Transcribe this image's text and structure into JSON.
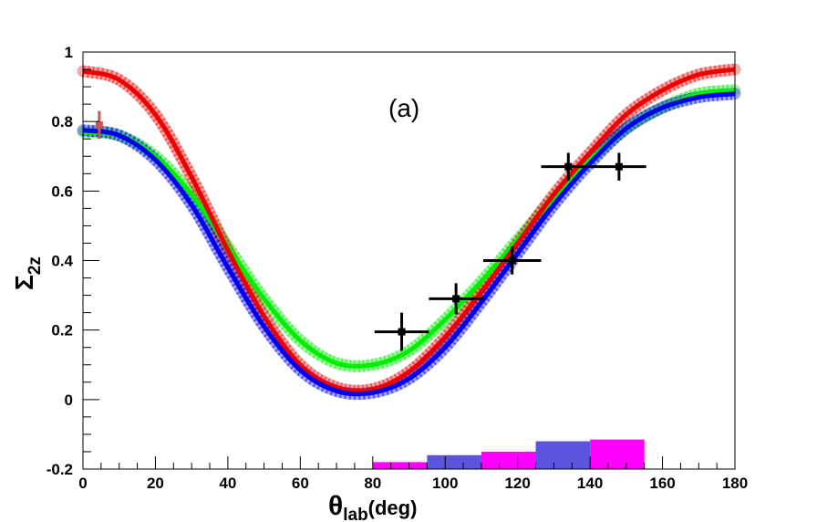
{
  "chart_data": {
    "type": "line",
    "panel_label": "(a)",
    "xlabel": {
      "main": "θ",
      "sub": "lab",
      "unit": "(deg)"
    },
    "ylabel": {
      "main": "Σ",
      "sub": "2z"
    },
    "xlim": [
      0,
      180
    ],
    "ylim": [
      -0.2,
      1.0
    ],
    "x_ticks": [
      0,
      20,
      40,
      60,
      80,
      100,
      120,
      140,
      160,
      180
    ],
    "y_ticks": [
      -0.2,
      0,
      0.2,
      0.4,
      0.6,
      0.8,
      1
    ],
    "x_tick_labels": [
      "0",
      "20",
      "40",
      "60",
      "80",
      "100",
      "120",
      "140",
      "160",
      "180"
    ],
    "y_tick_labels": [
      "-0.2",
      "0",
      "0.2",
      "0.4",
      "0.6",
      "0.8",
      "1"
    ],
    "series": [
      {
        "name": "green",
        "color": "#00ee00",
        "x": [
          0,
          10,
          20,
          30,
          40,
          50,
          60,
          70,
          80,
          90,
          100,
          110,
          120,
          130,
          140,
          150,
          160,
          170,
          180
        ],
        "values": [
          0.77,
          0.76,
          0.7,
          0.59,
          0.44,
          0.29,
          0.17,
          0.105,
          0.1,
          0.14,
          0.23,
          0.34,
          0.46,
          0.58,
          0.69,
          0.78,
          0.84,
          0.88,
          0.89
        ]
      },
      {
        "name": "red",
        "color": "#ee0000",
        "x": [
          0,
          10,
          20,
          30,
          40,
          50,
          60,
          70,
          80,
          90,
          100,
          110,
          120,
          130,
          140,
          150,
          160,
          170,
          180
        ],
        "values": [
          0.945,
          0.92,
          0.82,
          0.64,
          0.43,
          0.24,
          0.1,
          0.035,
          0.03,
          0.08,
          0.18,
          0.31,
          0.45,
          0.59,
          0.71,
          0.82,
          0.89,
          0.935,
          0.95
        ]
      },
      {
        "name": "blue",
        "color": "#0000ee",
        "x": [
          0,
          10,
          20,
          30,
          40,
          50,
          60,
          70,
          80,
          90,
          100,
          110,
          120,
          130,
          140,
          150,
          160,
          170,
          180
        ],
        "values": [
          0.775,
          0.76,
          0.69,
          0.56,
          0.38,
          0.21,
          0.085,
          0.025,
          0.02,
          0.06,
          0.15,
          0.28,
          0.42,
          0.56,
          0.68,
          0.78,
          0.84,
          0.87,
          0.88
        ]
      }
    ],
    "data_points": [
      {
        "x": 88,
        "y": 0.195,
        "xerr": 7.5,
        "yerr": 0.055,
        "color": "#000000"
      },
      {
        "x": 103,
        "y": 0.29,
        "xerr": 7.5,
        "yerr": 0.045,
        "color": "#000000"
      },
      {
        "x": 118.5,
        "y": 0.4,
        "xerr": 8,
        "yerr": 0.04,
        "color": "#000000"
      },
      {
        "x": 134,
        "y": 0.67,
        "xerr": 7.5,
        "yerr": 0.04,
        "color": "#000000"
      },
      {
        "x": 148,
        "y": 0.67,
        "xerr": 7.5,
        "yerr": 0.04,
        "color": "#000000"
      },
      {
        "x": 4.5,
        "y": 0.79,
        "xerr": 0,
        "yerr": 0.04,
        "color": "#cc5555"
      }
    ],
    "bottom_bars": [
      {
        "x0": 80,
        "x1": 95,
        "height": 0.02,
        "color": "#ff00ff"
      },
      {
        "x0": 95,
        "x1": 110,
        "height": 0.04,
        "color": "#5b55dd"
      },
      {
        "x0": 110,
        "x1": 125,
        "height": 0.05,
        "color": "#ff00ff"
      },
      {
        "x0": 125,
        "x1": 140,
        "height": 0.08,
        "color": "#5b55dd"
      },
      {
        "x0": 140,
        "x1": 155,
        "height": 0.085,
        "color": "#ff00ff"
      }
    ]
  }
}
